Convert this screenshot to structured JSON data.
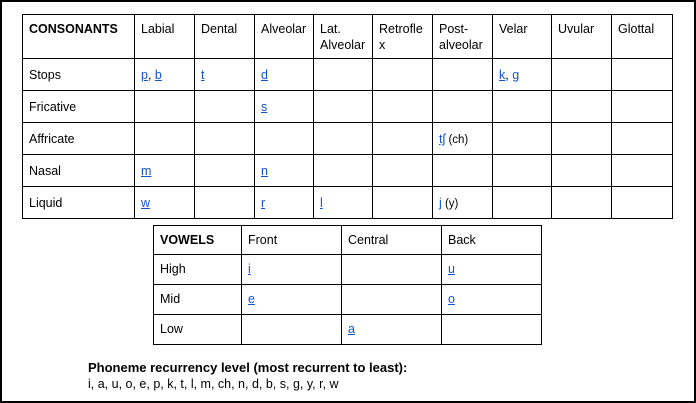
{
  "consonants": {
    "header": [
      "CONSONANTS",
      "Labial",
      "Dental",
      "Alveolar",
      "Lat. Alveolar",
      "Retroflex",
      "Post-alveolar",
      "Velar",
      "Uvular",
      "Glottal"
    ],
    "header_display": [
      "CONSONANTS",
      "Labial",
      "Dental",
      "Alveolar",
      "Lat.\nAlveolar",
      "Retrofle\nx",
      "Post-\nalveolar",
      "Velar",
      "Uvular",
      "Glottal"
    ],
    "rows": [
      {
        "label": "Stops",
        "cells": [
          [
            "p",
            "b"
          ],
          [
            "t"
          ],
          [
            "d"
          ],
          [],
          [],
          [],
          [
            "k",
            "g"
          ],
          [],
          []
        ]
      },
      {
        "label": "Fricative",
        "cells": [
          [],
          [],
          [
            "s"
          ],
          [],
          [],
          [],
          [],
          [],
          []
        ]
      },
      {
        "label": "Affricate",
        "cells": [
          [],
          [],
          [],
          [],
          [],
          [
            "tʃ"
          ],
          [],
          [],
          []
        ],
        "notes": {
          "5": "(ch)"
        }
      },
      {
        "label": "Nasal",
        "cells": [
          [
            "m"
          ],
          [],
          [
            "n"
          ],
          [],
          [],
          [],
          [],
          [],
          []
        ]
      },
      {
        "label": "Liquid",
        "cells": [
          [
            "w"
          ],
          [],
          [
            "r"
          ],
          [
            "l"
          ],
          [],
          [
            "j"
          ],
          [],
          [],
          []
        ],
        "notes": {
          "5": "(y)"
        }
      }
    ]
  },
  "vowels": {
    "header": [
      "VOWELS",
      "Front",
      "Central",
      "Back"
    ],
    "rows": [
      {
        "label": "High",
        "cells": [
          [
            "i"
          ],
          [],
          [
            "u"
          ]
        ]
      },
      {
        "label": "Mid",
        "cells": [
          [
            "e"
          ],
          [],
          [
            "o"
          ]
        ]
      },
      {
        "label": "Low",
        "cells": [
          [],
          [
            "a"
          ],
          []
        ]
      }
    ]
  },
  "recurrency": {
    "heading": "Phoneme recurrency level (most recurrent to least):",
    "list": "i, a, u, o, e, p, k, t, l, m, ch, n, d, b, s, g, y, r, w"
  },
  "colors": {
    "link": "#1155cc"
  }
}
